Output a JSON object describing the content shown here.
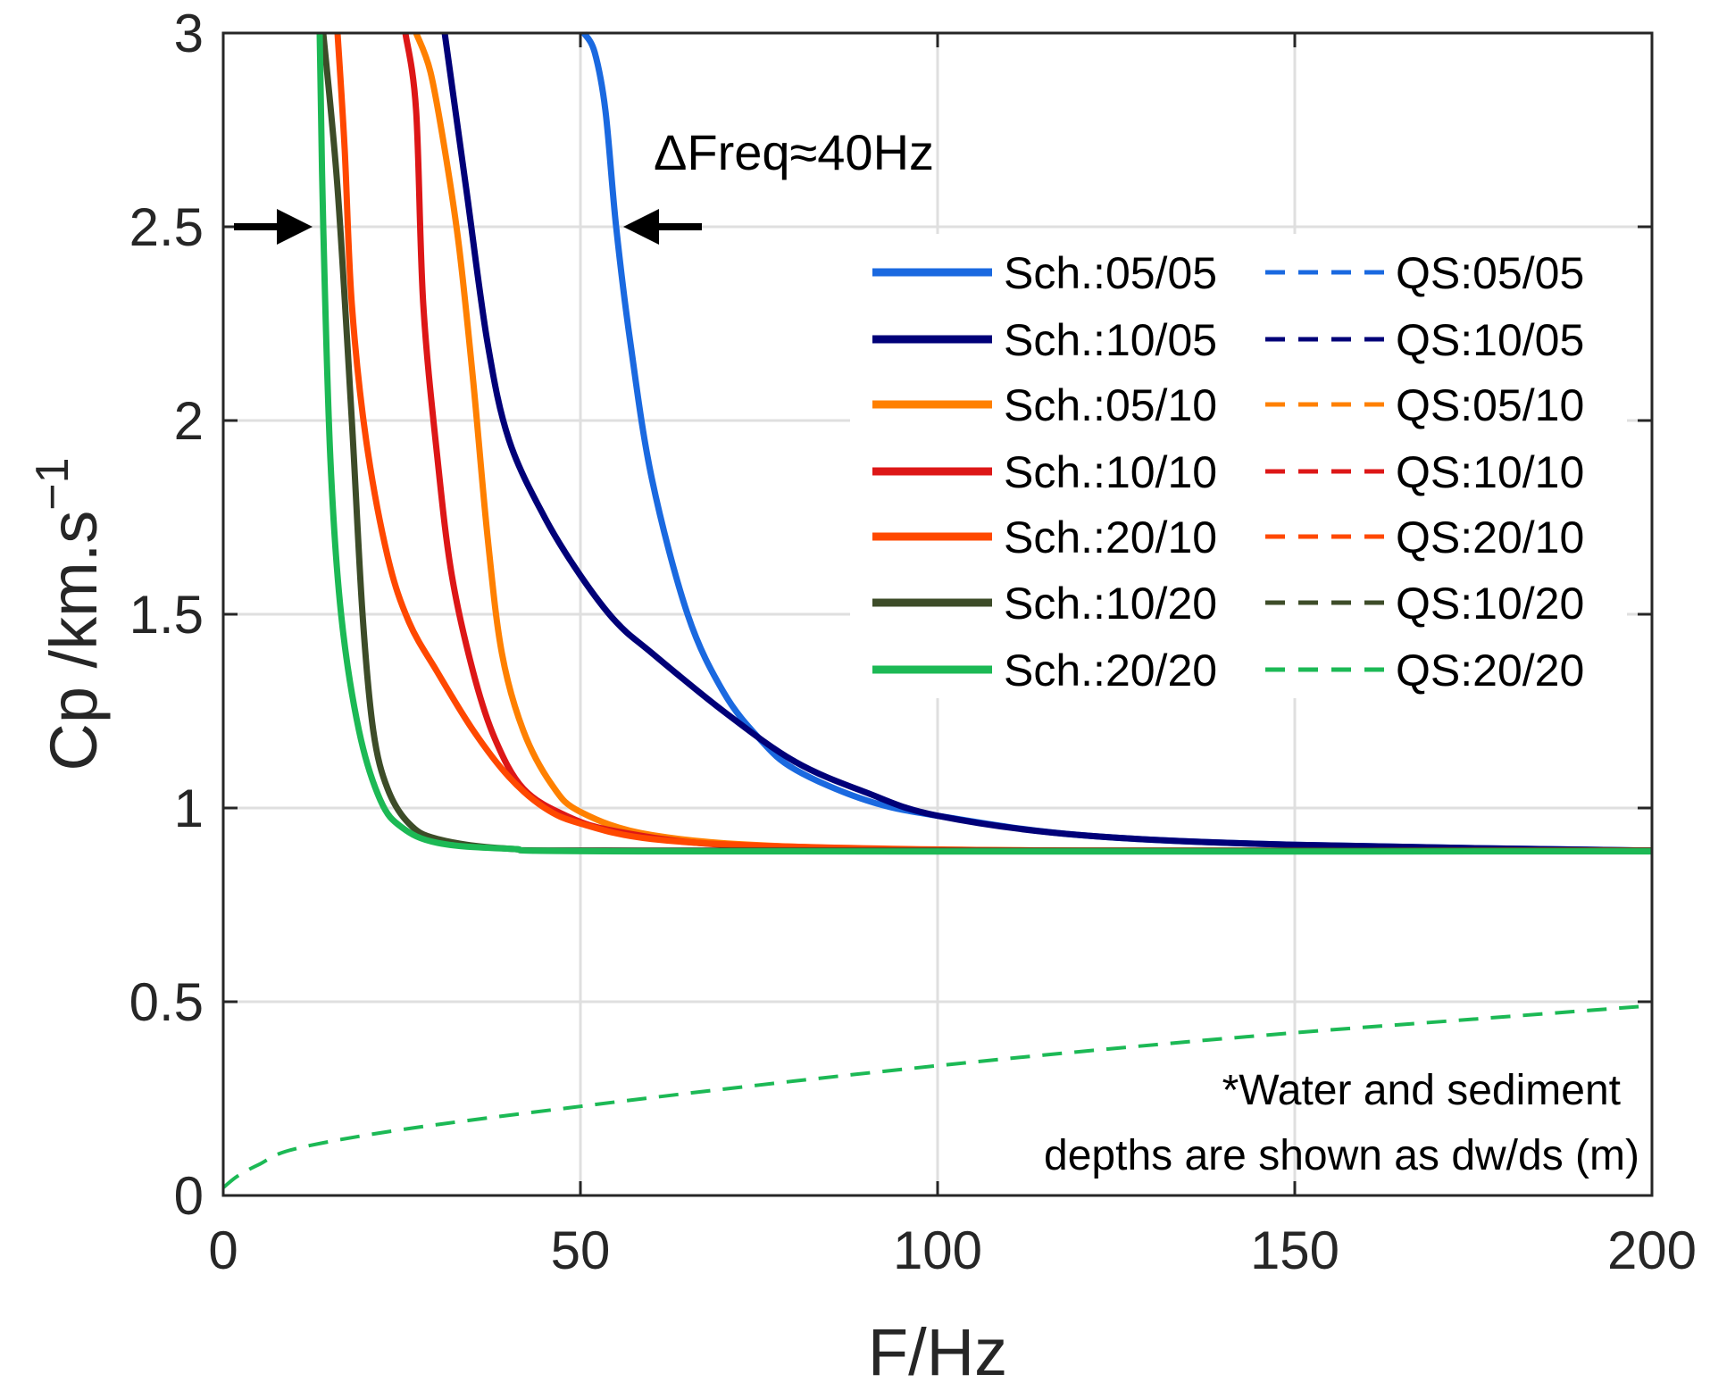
{
  "chart_data": {
    "type": "line",
    "xlabel": "F/Hz",
    "ylabel": "Cp /km.s",
    "ylabel_superscript": "−1",
    "xlim": [
      0,
      200
    ],
    "ylim": [
      0,
      3
    ],
    "grid": true,
    "xticks": [
      0,
      50,
      100,
      150,
      200
    ],
    "xtick_labels": [
      "0",
      "50",
      "100",
      "150",
      "200"
    ],
    "yticks": [
      0,
      0.5,
      1,
      1.5,
      2,
      2.5,
      3
    ],
    "ytick_labels": [
      "0",
      "0.5",
      "1",
      "1.5",
      "2",
      "2.5",
      "3"
    ],
    "legend_placement": "top-right",
    "annotation": "ΔFreq≈40Hz",
    "annotation_arrows": [
      {
        "from": [
          1.5,
          2.5
        ],
        "to": [
          12.5,
          2.5
        ]
      },
      {
        "from": [
          67,
          2.5
        ],
        "to": [
          56,
          2.5
        ]
      }
    ],
    "note_lines": [
      "*Water and sediment",
      "depths are shown as dw/ds (m)"
    ],
    "series": [
      {
        "name": "Sch.:05/05",
        "style": "solid",
        "color": "#1a69e0",
        "x": [
          50.5,
          52,
          53.5,
          55,
          57,
          60,
          65,
          70,
          75,
          80,
          90,
          100,
          120,
          150,
          200
        ],
        "y": [
          3,
          2.95,
          2.8,
          2.5,
          2.2,
          1.85,
          1.5,
          1.3,
          1.18,
          1.1,
          1.02,
          0.98,
          0.93,
          0.905,
          0.89
        ]
      },
      {
        "name": "Sch.:10/05",
        "style": "solid",
        "color": "#000078",
        "x": [
          31,
          34,
          37,
          40,
          45,
          50,
          55,
          60,
          70,
          80,
          90,
          100,
          120,
          150,
          200
        ],
        "y": [
          3,
          2.6,
          2.2,
          1.95,
          1.75,
          1.6,
          1.48,
          1.4,
          1.25,
          1.12,
          1.04,
          0.98,
          0.93,
          0.905,
          0.89
        ]
      },
      {
        "name": "Sch.:05/10",
        "style": "solid",
        "color": "#ff8000",
        "x": [
          27,
          29,
          31,
          33,
          35,
          37,
          39,
          42,
          46,
          50,
          60,
          80,
          120,
          200
        ],
        "y": [
          3,
          2.9,
          2.7,
          2.45,
          2.1,
          1.7,
          1.4,
          1.2,
          1.06,
          0.99,
          0.93,
          0.9,
          0.89,
          0.89
        ]
      },
      {
        "name": "Sch.:10/10",
        "style": "solid",
        "color": "#dd1717",
        "x": [
          25.5,
          27,
          28,
          30,
          32,
          35,
          38,
          42,
          48,
          55,
          70,
          100,
          200
        ],
        "y": [
          3,
          2.8,
          2.3,
          1.9,
          1.6,
          1.35,
          1.18,
          1.05,
          0.98,
          0.94,
          0.905,
          0.89,
          0.89
        ]
      },
      {
        "name": "Sch.:20/10",
        "style": "solid",
        "color": "#ff4800",
        "x": [
          16,
          17,
          18,
          20,
          23,
          26,
          30,
          35,
          40,
          45,
          50,
          60,
          80,
          120,
          200
        ],
        "y": [
          3,
          2.7,
          2.3,
          1.95,
          1.65,
          1.48,
          1.35,
          1.2,
          1.08,
          1.0,
          0.96,
          0.92,
          0.9,
          0.89,
          0.89
        ]
      },
      {
        "name": "Sch.:10/20",
        "style": "solid",
        "color": "#3d4c28",
        "x": [
          14,
          16,
          18,
          19.5,
          21,
          23,
          26,
          30,
          40,
          60,
          200
        ],
        "y": [
          3,
          2.6,
          2.0,
          1.5,
          1.2,
          1.05,
          0.96,
          0.92,
          0.895,
          0.89,
          0.89
        ]
      },
      {
        "name": "Sch.:20/20",
        "style": "solid",
        "color": "#1cb955",
        "x": [
          13.5,
          14,
          15,
          16.5,
          19,
          22,
          25,
          30,
          40,
          60,
          200
        ],
        "y": [
          3,
          2.5,
          1.9,
          1.5,
          1.2,
          1.02,
          0.95,
          0.91,
          0.895,
          0.888,
          0.888
        ]
      },
      {
        "name": "QS:05/05",
        "style": "dashed",
        "color": "#1a69e0",
        "x": [],
        "y": []
      },
      {
        "name": "QS:10/05",
        "style": "dashed",
        "color": "#000078",
        "x": [],
        "y": []
      },
      {
        "name": "QS:05/10",
        "style": "dashed",
        "color": "#ff8000",
        "x": [],
        "y": []
      },
      {
        "name": "QS:10/10",
        "style": "dashed",
        "color": "#dd1717",
        "x": [],
        "y": []
      },
      {
        "name": "QS:20/10",
        "style": "dashed",
        "color": "#ff4800",
        "x": [],
        "y": []
      },
      {
        "name": "QS:10/20",
        "style": "dashed",
        "color": "#3d4c28",
        "x": [],
        "y": []
      },
      {
        "name": "QS:20/20",
        "style": "dashed",
        "color": "#1cb955",
        "x": [
          0,
          2,
          5,
          10,
          25,
          50,
          75,
          100,
          125,
          150,
          175,
          200
        ],
        "y": [
          0.02,
          0.05,
          0.08,
          0.12,
          0.17,
          0.23,
          0.285,
          0.335,
          0.38,
          0.42,
          0.455,
          0.49
        ]
      }
    ]
  }
}
